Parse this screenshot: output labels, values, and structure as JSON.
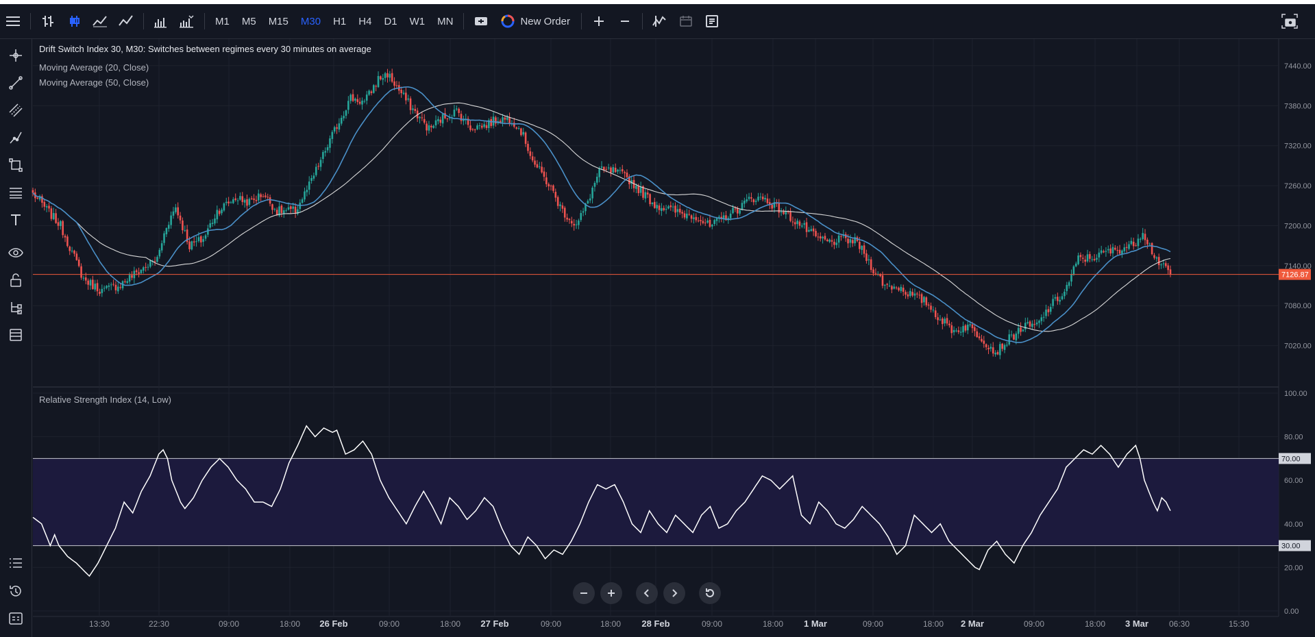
{
  "toolbar": {
    "menu_icon": "hamburger-icon",
    "chart_types": [
      "bars-icon",
      "candles-icon",
      "line-icon",
      "area-icon",
      "volume-bars-icon",
      "histogram-icon"
    ],
    "timeframes": [
      "M1",
      "M5",
      "M15",
      "M30",
      "H1",
      "H4",
      "D1",
      "W1",
      "MN"
    ],
    "active_timeframe": "M30",
    "new_order_label": "New Order",
    "zoom_in": "+",
    "zoom_out": "−"
  },
  "legend": {
    "title": "Drift Switch Index 30, M30: Switches between regimes every 30 minutes on average",
    "ma20": "Moving Average (20, Close)",
    "ma50": "Moving Average (50, Close)",
    "rsi": "Relative Strength Index (14, Low)"
  },
  "colors": {
    "background": "#131722",
    "up": "#26a69a",
    "down": "#ef5350",
    "ma20": "#4a90c8",
    "ma50": "#d9d9d9",
    "price_line": "#f05a3c",
    "rsi_band": "#1c1a3d",
    "rsi_line": "#ffffff"
  },
  "chart_data": [
    {
      "type": "candlestick",
      "symbol": "Drift Switch Index 30",
      "timeframe": "M30",
      "y_ticks": [
        "7440.00",
        "7380.00",
        "7320.00",
        "7260.00",
        "7200.00",
        "7140.00",
        "7080.00",
        "7020.00"
      ],
      "ylim": [
        6960,
        7480
      ],
      "last_price": "7126.87",
      "last_price_value": 7126.87,
      "close_anchors": [
        [
          0,
          7248
        ],
        [
          12,
          7200
        ],
        [
          22,
          7120
        ],
        [
          30,
          7102
        ],
        [
          38,
          7112
        ],
        [
          46,
          7132
        ],
        [
          54,
          7150
        ],
        [
          58,
          7200
        ],
        [
          62,
          7228
        ],
        [
          68,
          7170
        ],
        [
          74,
          7180
        ],
        [
          80,
          7222
        ],
        [
          88,
          7242
        ],
        [
          94,
          7235
        ],
        [
          100,
          7248
        ],
        [
          106,
          7222
        ],
        [
          114,
          7222
        ],
        [
          120,
          7260
        ],
        [
          126,
          7305
        ],
        [
          132,
          7350
        ],
        [
          138,
          7392
        ],
        [
          144,
          7385
        ],
        [
          150,
          7420
        ],
        [
          154,
          7428
        ],
        [
          160,
          7398
        ],
        [
          166,
          7370
        ],
        [
          172,
          7345
        ],
        [
          178,
          7362
        ],
        [
          184,
          7372
        ],
        [
          190,
          7348
        ],
        [
          196,
          7350
        ],
        [
          202,
          7360
        ],
        [
          208,
          7360
        ],
        [
          212,
          7342
        ],
        [
          218,
          7292
        ],
        [
          224,
          7262
        ],
        [
          230,
          7222
        ],
        [
          236,
          7200
        ],
        [
          240,
          7228
        ],
        [
          246,
          7282
        ],
        [
          252,
          7282
        ],
        [
          258,
          7272
        ],
        [
          264,
          7252
        ],
        [
          270,
          7232
        ],
        [
          276,
          7225
        ],
        [
          282,
          7218
        ],
        [
          288,
          7215
        ],
        [
          294,
          7198
        ],
        [
          300,
          7212
        ],
        [
          306,
          7225
        ],
        [
          312,
          7242
        ],
        [
          318,
          7240
        ],
        [
          324,
          7225
        ],
        [
          328,
          7215
        ],
        [
          334,
          7200
        ],
        [
          340,
          7182
        ],
        [
          346,
          7175
        ],
        [
          352,
          7180
        ],
        [
          358,
          7175
        ],
        [
          364,
          7140
        ],
        [
          370,
          7110
        ],
        [
          376,
          7108
        ],
        [
          382,
          7095
        ],
        [
          388,
          7085
        ],
        [
          394,
          7060
        ],
        [
          400,
          7042
        ],
        [
          406,
          7050
        ],
        [
          412,
          7032
        ],
        [
          418,
          7010
        ],
        [
          424,
          7030
        ],
        [
          430,
          7048
        ],
        [
          436,
          7050
        ],
        [
          442,
          7080
        ],
        [
          448,
          7100
        ],
        [
          454,
          7150
        ],
        [
          460,
          7152
        ],
        [
          466,
          7160
        ],
        [
          472,
          7165
        ],
        [
          478,
          7172
        ],
        [
          482,
          7192
        ],
        [
          486,
          7162
        ],
        [
          490,
          7140
        ],
        [
          494,
          7126.87
        ]
      ],
      "count": 495
    },
    {
      "type": "line",
      "name": "Relative Strength Index (14, Low)",
      "y_ticks": [
        "100.00",
        "80.00",
        "60.00",
        "40.00",
        "20.00",
        "0.00"
      ],
      "ylim": [
        0,
        100
      ],
      "levels": [
        "70.00",
        "30.00"
      ],
      "anchors": [
        [
          0,
          43
        ],
        [
          4,
          40
        ],
        [
          6,
          35
        ],
        [
          8,
          30
        ],
        [
          10,
          35
        ],
        [
          12,
          30
        ],
        [
          16,
          25
        ],
        [
          20,
          22
        ],
        [
          24,
          18
        ],
        [
          26,
          16
        ],
        [
          30,
          22
        ],
        [
          34,
          30
        ],
        [
          38,
          38
        ],
        [
          42,
          50
        ],
        [
          46,
          45
        ],
        [
          50,
          55
        ],
        [
          54,
          62
        ],
        [
          58,
          72
        ],
        [
          60,
          74
        ],
        [
          62,
          70
        ],
        [
          64,
          60
        ],
        [
          66,
          55
        ],
        [
          68,
          50
        ],
        [
          70,
          47
        ],
        [
          74,
          52
        ],
        [
          78,
          60
        ],
        [
          82,
          66
        ],
        [
          86,
          70
        ],
        [
          90,
          66
        ],
        [
          94,
          60
        ],
        [
          98,
          56
        ],
        [
          102,
          50
        ],
        [
          106,
          50
        ],
        [
          110,
          48
        ],
        [
          114,
          56
        ],
        [
          118,
          68
        ],
        [
          122,
          76
        ],
        [
          126,
          85
        ],
        [
          130,
          80
        ],
        [
          134,
          84
        ],
        [
          138,
          82
        ],
        [
          140,
          83
        ],
        [
          144,
          72
        ],
        [
          148,
          74
        ],
        [
          152,
          78
        ],
        [
          156,
          72
        ],
        [
          160,
          60
        ],
        [
          164,
          52
        ],
        [
          168,
          46
        ],
        [
          172,
          40
        ],
        [
          176,
          48
        ],
        [
          180,
          55
        ],
        [
          184,
          48
        ],
        [
          188,
          40
        ],
        [
          192,
          52
        ],
        [
          196,
          48
        ],
        [
          200,
          42
        ],
        [
          204,
          46
        ],
        [
          208,
          52
        ],
        [
          212,
          48
        ],
        [
          216,
          38
        ],
        [
          220,
          30
        ],
        [
          224,
          26
        ],
        [
          228,
          34
        ],
        [
          232,
          30
        ],
        [
          236,
          24
        ],
        [
          240,
          28
        ],
        [
          244,
          26
        ],
        [
          248,
          32
        ],
        [
          252,
          40
        ],
        [
          256,
          50
        ],
        [
          260,
          58
        ],
        [
          264,
          56
        ],
        [
          268,
          58
        ],
        [
          272,
          50
        ],
        [
          276,
          40
        ],
        [
          280,
          36
        ],
        [
          284,
          46
        ],
        [
          288,
          40
        ],
        [
          292,
          36
        ],
        [
          296,
          44
        ],
        [
          300,
          40
        ],
        [
          304,
          36
        ],
        [
          308,
          44
        ],
        [
          312,
          48
        ],
        [
          316,
          38
        ],
        [
          320,
          40
        ],
        [
          324,
          46
        ],
        [
          328,
          50
        ],
        [
          332,
          56
        ],
        [
          336,
          62
        ],
        [
          340,
          60
        ],
        [
          344,
          56
        ],
        [
          348,
          60
        ],
        [
          350,
          62
        ],
        [
          354,
          44
        ],
        [
          358,
          40
        ],
        [
          362,
          50
        ],
        [
          366,
          46
        ],
        [
          370,
          40
        ],
        [
          374,
          38
        ],
        [
          378,
          42
        ],
        [
          382,
          48
        ],
        [
          386,
          44
        ],
        [
          390,
          40
        ],
        [
          394,
          34
        ],
        [
          398,
          26
        ],
        [
          402,
          30
        ],
        [
          406,
          44
        ],
        [
          410,
          40
        ],
        [
          414,
          36
        ],
        [
          418,
          40
        ],
        [
          422,
          32
        ],
        [
          426,
          28
        ],
        [
          430,
          24
        ],
        [
          434,
          20
        ],
        [
          436,
          19
        ],
        [
          440,
          28
        ],
        [
          444,
          32
        ],
        [
          448,
          26
        ],
        [
          452,
          22
        ],
        [
          456,
          30
        ],
        [
          460,
          36
        ],
        [
          464,
          44
        ],
        [
          468,
          50
        ],
        [
          472,
          56
        ],
        [
          476,
          66
        ],
        [
          480,
          70
        ],
        [
          484,
          74
        ],
        [
          488,
          72
        ],
        [
          492,
          76
        ],
        [
          496,
          72
        ],
        [
          500,
          66
        ],
        [
          504,
          72
        ],
        [
          508,
          76
        ],
        [
          510,
          70
        ],
        [
          512,
          60
        ],
        [
          516,
          50
        ],
        [
          518,
          46
        ],
        [
          520,
          52
        ],
        [
          522,
          50
        ],
        [
          524,
          46
        ]
      ]
    }
  ],
  "time_axis": {
    "labels": [
      "13:30",
      "22:30",
      "09:00",
      "18:00",
      "26 Feb",
      "09:00",
      "18:00",
      "27 Feb",
      "09:00",
      "18:00",
      "28 Feb",
      "09:00",
      "18:00",
      "1 Mar",
      "09:00",
      "18:00",
      "2 Mar",
      "09:00",
      "18:00",
      "3 Mar",
      "06:30",
      "15:30"
    ],
    "bold": [
      "26 Feb",
      "27 Feb",
      "28 Feb",
      "1 Mar",
      "2 Mar",
      "3 Mar"
    ]
  },
  "nav": {
    "zoom_out_icon": "minus-icon",
    "zoom_in_icon": "plus-icon",
    "scroll_left_icon": "chevron-left-icon",
    "scroll_right_icon": "chevron-right-icon",
    "reset_icon": "reset-icon"
  }
}
